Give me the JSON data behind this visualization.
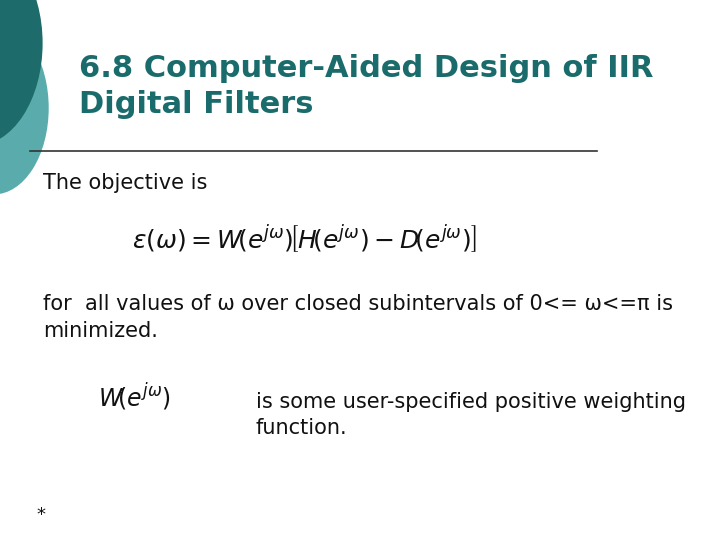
{
  "title": "6.8 Computer-Aided Design of IIR\nDigital Filters",
  "title_color": "#1a6b6b",
  "bg_color": "#ffffff",
  "body_text_1": "The objective is",
  "body_text_2": "for  all values of ω over closed subintervals of 0<= ω<=π is\nminimized.",
  "body_text_3": "is some user-specified positive weighting\nfunction.",
  "footnote": "*",
  "title_fontsize": 22,
  "body_fontsize": 15,
  "formula_fontsize": 18,
  "footnote_fontsize": 13,
  "line_color": "#333333",
  "text_color": "#111111",
  "ell1_color": "#1e6b6b",
  "ell2_color": "#5aacac"
}
